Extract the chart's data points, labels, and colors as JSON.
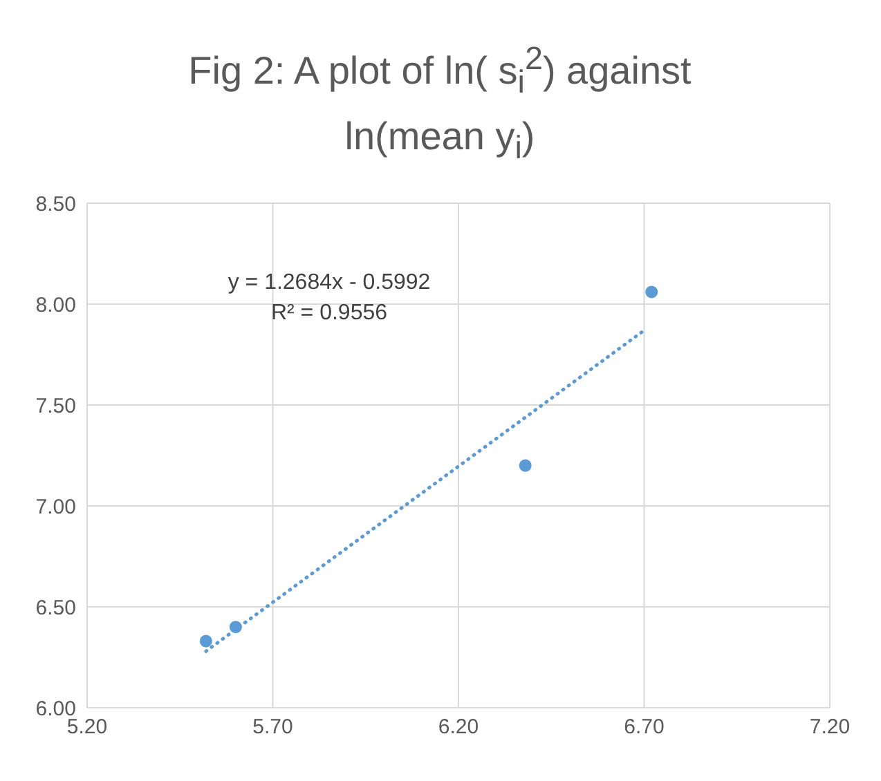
{
  "chart_data": {
    "type": "scatter",
    "title": "Fig 2: A plot of ln( s$_{i}$$^{2}$) against ln(mean y$_{i}$)",
    "x": [
      5.52,
      5.6,
      6.38,
      6.72
    ],
    "series": [
      {
        "color": "#5b9bd5",
        "values": [
          6.33,
          6.4,
          7.2,
          8.06
        ],
        "marker": "circle"
      },
      {
        "type": "line",
        "color": "#5b9bd5",
        "x": [
          5.52,
          6.7
        ],
        "values": [
          6.28,
          7.87
        ],
        "line_style": "dotted",
        "marker": "none"
      }
    ],
    "annotations": [
      "y = 1.2684x - 0.5992",
      "R² = 0.9556"
    ],
    "xlim": [
      5.2,
      7.2
    ],
    "xticks": [
      {
        "value": 5.2,
        "label": "5.20"
      },
      {
        "value": 5.7,
        "label": "5.70"
      },
      {
        "value": 6.2,
        "label": "6.20"
      },
      {
        "value": 6.7,
        "label": "6.70"
      },
      {
        "value": 7.2,
        "label": "7.20"
      }
    ],
    "ylim": [
      6,
      8.5
    ],
    "yticks": [
      {
        "value": 6,
        "label": "6.00"
      },
      {
        "value": 6.5,
        "label": "6.50"
      },
      {
        "value": 7,
        "label": "7.00"
      },
      {
        "value": 7.5,
        "label": "7.50"
      },
      {
        "value": 8,
        "label": "8.00"
      },
      {
        "value": 8.5,
        "label": "8.50"
      }
    ],
    "grid": true,
    "legend": false
  }
}
